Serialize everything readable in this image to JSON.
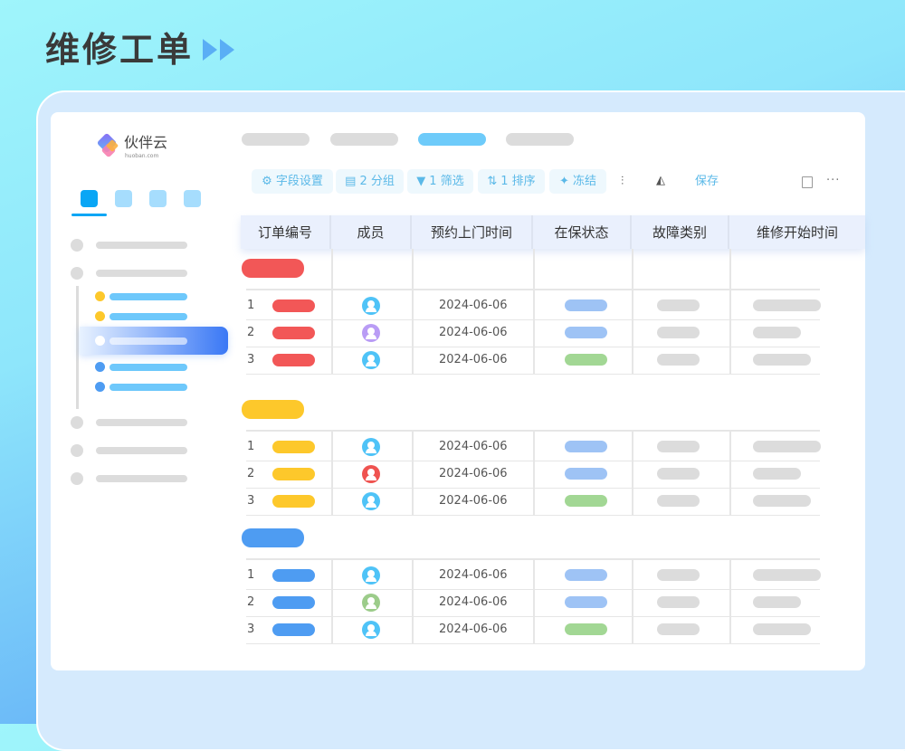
{
  "page_title": "维修工单",
  "colors": {
    "accent": "#5aaef5",
    "red": "#f25757",
    "yellow": "#fdc82b",
    "blue": "#4e9cf2",
    "status_blue": "#9ec3f5",
    "status_green": "#a2d794"
  },
  "logo": {
    "name": "伙伴云",
    "domain": "huoban.com"
  },
  "toolbar": {
    "fields": "字段设置",
    "group": "2 分组",
    "filter": "1 筛选",
    "sort": "1 排序",
    "freeze": "冻结",
    "save": "保存"
  },
  "table": {
    "headers": [
      "订单编号",
      "成员",
      "预约上门时间",
      "在保状态",
      "故障类别",
      "维修开始时间"
    ],
    "groups": [
      {
        "color": "#f25757",
        "rows": [
          {
            "num": "1",
            "avatar": "#4fc3f7",
            "date": "2024-06-06",
            "status": "#9ec3f5"
          },
          {
            "num": "2",
            "avatar": "#b99cf5",
            "date": "2024-06-06",
            "status": "#9ec3f5"
          },
          {
            "num": "3",
            "avatar": "#4fc3f7",
            "date": "2024-06-06",
            "status": "#a2d794"
          }
        ]
      },
      {
        "color": "#fdc82b",
        "rows": [
          {
            "num": "1",
            "avatar": "#4fc3f7",
            "date": "2024-06-06",
            "status": "#9ec3f5"
          },
          {
            "num": "2",
            "avatar": "#ef5350",
            "date": "2024-06-06",
            "status": "#9ec3f5"
          },
          {
            "num": "3",
            "avatar": "#4fc3f7",
            "date": "2024-06-06",
            "status": "#a2d794"
          }
        ]
      },
      {
        "color": "#4e9cf2",
        "rows": [
          {
            "num": "1",
            "avatar": "#4fc3f7",
            "date": "2024-06-06",
            "status": "#9ec3f5"
          },
          {
            "num": "2",
            "avatar": "#9ccc8a",
            "date": "2024-06-06",
            "status": "#9ec3f5"
          },
          {
            "num": "3",
            "avatar": "#4fc3f7",
            "date": "2024-06-06",
            "status": "#a2d794"
          }
        ]
      }
    ]
  }
}
